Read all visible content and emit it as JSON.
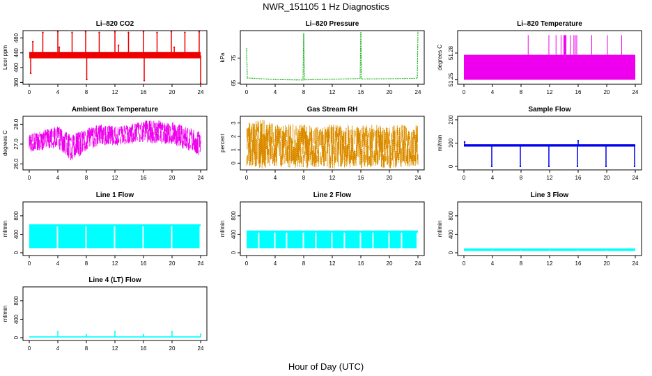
{
  "title": "NWR_151105  1 Hz Diagnostics",
  "xlabel": "Hour of Day (UTC)",
  "chart_data": [
    {
      "type": "line",
      "title": "Li–820 CO2",
      "ylabel": "Licor ppm",
      "color": "#ee0000",
      "xlim": [
        0,
        24
      ],
      "ylim": [
        355,
        500
      ],
      "xticks": [
        0,
        4,
        8,
        12,
        16,
        20,
        24
      ],
      "yticks": [
        360,
        400,
        440,
        480
      ],
      "style": "band",
      "band": [
        {
          "x0": 0,
          "x1": 24,
          "y0": 425,
          "y1": 442
        }
      ],
      "series": [
        {
          "baseline": 433,
          "spikes": [
            {
              "x": 0.2,
              "y": 385
            },
            {
              "x": 0.5,
              "y": 470
            },
            {
              "x": 1.9,
              "y": 495
            },
            {
              "x": 4.0,
              "y": 497
            },
            {
              "x": 4.2,
              "y": 455
            },
            {
              "x": 6.0,
              "y": 495
            },
            {
              "x": 7.9,
              "y": 497
            },
            {
              "x": 8.05,
              "y": 368
            },
            {
              "x": 9.8,
              "y": 495
            },
            {
              "x": 12.0,
              "y": 497
            },
            {
              "x": 12.5,
              "y": 460
            },
            {
              "x": 13.9,
              "y": 495
            },
            {
              "x": 16.0,
              "y": 497
            },
            {
              "x": 16.1,
              "y": 365
            },
            {
              "x": 17.9,
              "y": 495
            },
            {
              "x": 19.9,
              "y": 497
            },
            {
              "x": 20.3,
              "y": 455
            },
            {
              "x": 21.8,
              "y": 495
            },
            {
              "x": 23.8,
              "y": 497
            },
            {
              "x": 24.0,
              "y": 358
            }
          ]
        }
      ]
    },
    {
      "type": "line",
      "title": "Li–820 Pressure",
      "ylabel": "kPa",
      "color": "#00aa00",
      "xlim": [
        0,
        24
      ],
      "ylim": [
        64.5,
        86
      ],
      "xticks": [
        0,
        4,
        8,
        12,
        16,
        20,
        24
      ],
      "yticks": [
        65,
        75
      ],
      "style": "dotted",
      "series": [
        {
          "points": [
            {
              "x": 0,
              "y": 79
            },
            {
              "x": 0.1,
              "y": 67
            },
            {
              "x": 4,
              "y": 66.4
            },
            {
              "x": 7.9,
              "y": 66.2
            },
            {
              "x": 8.0,
              "y": 85
            },
            {
              "x": 8.1,
              "y": 66.3
            },
            {
              "x": 12,
              "y": 66.5
            },
            {
              "x": 15.9,
              "y": 66.8
            },
            {
              "x": 16.0,
              "y": 85.5
            },
            {
              "x": 16.1,
              "y": 66.6
            },
            {
              "x": 20,
              "y": 66.7
            },
            {
              "x": 23.9,
              "y": 66.9
            },
            {
              "x": 24.0,
              "y": 85.5
            }
          ]
        }
      ]
    },
    {
      "type": "line",
      "title": "Li–820 Temperature",
      "ylabel": "degrees C",
      "color": "#ee00ee",
      "xlim": [
        0,
        24
      ],
      "ylim": [
        51.245,
        51.305
      ],
      "xticks": [
        0,
        4,
        8,
        12,
        16,
        20,
        24
      ],
      "yticks": [
        51.25,
        51.28
      ],
      "style": "band",
      "band": [
        {
          "x0": 0,
          "x1": 24,
          "y0": 51.25,
          "y1": 51.278
        }
      ],
      "series": [
        {
          "spikes_x": [
            9.0,
            11.9,
            12.9,
            13.6,
            14.0,
            14.1,
            14.2,
            14.3,
            14.9,
            15.4,
            15.6,
            15.8,
            17.9,
            20.1,
            22.1
          ],
          "spike_top": 51.3
        }
      ]
    },
    {
      "type": "line",
      "title": "Ambient Box Temperature",
      "ylabel": "degrees C",
      "color": "#ee00ee",
      "xlim": [
        0,
        24
      ],
      "ylim": [
        25.7,
        28.4
      ],
      "xticks": [
        0,
        4,
        8,
        12,
        16,
        20,
        24
      ],
      "yticks": [
        26.0,
        27.0,
        28.0
      ],
      "style": "noise",
      "series": [
        {
          "x": [
            0,
            2,
            4,
            6,
            8,
            10,
            12,
            14,
            16,
            18,
            20,
            22,
            24
          ],
          "low": [
            26.6,
            26.7,
            26.8,
            26.1,
            26.6,
            26.9,
            26.9,
            27.0,
            27.1,
            27.0,
            27.0,
            26.7,
            26.4
          ],
          "high": [
            27.5,
            27.7,
            27.9,
            27.5,
            27.8,
            28.0,
            27.9,
            28.0,
            28.2,
            28.2,
            28.1,
            27.9,
            27.6
          ]
        }
      ]
    },
    {
      "type": "scatter",
      "title": "Gas Stream RH",
      "ylabel": "percent",
      "color": "#e0a000",
      "xlim": [
        0,
        24
      ],
      "ylim": [
        -0.5,
        3.5
      ],
      "xticks": [
        0,
        4,
        8,
        12,
        16,
        20,
        24
      ],
      "yticks": [
        0,
        1,
        2,
        3
      ],
      "style": "noise",
      "series": [
        {
          "x": [
            0,
            2,
            4,
            6,
            8,
            10,
            12,
            14,
            16,
            18,
            20,
            22,
            24
          ],
          "low": [
            -0.3,
            -0.4,
            -0.3,
            -0.4,
            -0.4,
            -0.3,
            -0.4,
            -0.3,
            -0.4,
            -0.3,
            -0.4,
            -0.3,
            -0.2
          ],
          "high": [
            3.0,
            3.3,
            2.9,
            2.9,
            2.9,
            2.8,
            2.9,
            2.9,
            2.8,
            2.9,
            2.8,
            2.9,
            2.9
          ]
        }
      ]
    },
    {
      "type": "line",
      "title": "Sample Flow",
      "ylabel": "ml/min",
      "color": "#0000ee",
      "xlim": [
        0,
        24
      ],
      "ylim": [
        -15,
        215
      ],
      "xticks": [
        0,
        4,
        8,
        12,
        16,
        20,
        24
      ],
      "yticks": [
        0,
        100,
        200
      ],
      "style": "band",
      "band": [
        {
          "x0": 0,
          "x1": 24,
          "y0": 85,
          "y1": 95
        }
      ],
      "series": [
        {
          "spikes": [
            {
              "x": 0.1,
              "y": 105
            },
            {
              "x": 3.9,
              "y": 0
            },
            {
              "x": 7.9,
              "y": 0
            },
            {
              "x": 11.9,
              "y": 0
            },
            {
              "x": 15.9,
              "y": 0
            },
            {
              "x": 16.0,
              "y": 110
            },
            {
              "x": 19.9,
              "y": 0
            },
            {
              "x": 23.9,
              "y": 0
            }
          ]
        }
      ]
    },
    {
      "type": "area",
      "title": "Line 1 Flow",
      "ylabel": "ml/min",
      "color": "#00ffff",
      "xlim": [
        0,
        24
      ],
      "ylim": [
        -60,
        1100
      ],
      "xticks": [
        0,
        4,
        8,
        12,
        16,
        20,
        24
      ],
      "yticks": [
        0,
        400,
        800
      ],
      "style": "band",
      "band": [
        {
          "x0": 0,
          "x1": 24,
          "y0": 100,
          "y1": 615
        }
      ],
      "series": [
        {
          "gaps_x": [
            3.95,
            7.95,
            11.95,
            15.95,
            19.95,
            23.95
          ]
        }
      ]
    },
    {
      "type": "area",
      "title": "Line 2 Flow",
      "ylabel": "ml/min",
      "color": "#00ffff",
      "xlim": [
        0,
        24
      ],
      "ylim": [
        -60,
        1100
      ],
      "xticks": [
        0,
        4,
        8,
        12,
        16,
        20,
        24
      ],
      "yticks": [
        0,
        400,
        800
      ],
      "style": "band",
      "band": [
        {
          "x0": 0,
          "x1": 24,
          "y0": 100,
          "y1": 480
        }
      ],
      "series": [
        {
          "gaps_x": [
            1.7,
            3.95,
            5.6,
            7.95,
            9.7,
            11.95,
            13.7,
            15.95,
            17.7,
            19.95,
            21.7,
            23.9
          ]
        }
      ]
    },
    {
      "type": "area",
      "title": "Line 3 Flow",
      "ylabel": "ml/min",
      "color": "#00ffff",
      "xlim": [
        0,
        24
      ],
      "ylim": [
        -60,
        1100
      ],
      "xticks": [
        0,
        4,
        8,
        12,
        16,
        20,
        24
      ],
      "yticks": [
        0,
        400,
        800
      ],
      "style": "band",
      "band": [
        {
          "x0": 0,
          "x1": 24,
          "y0": 40,
          "y1": 95
        }
      ],
      "series": [
        {
          "gaps_x": [
            3.95,
            7.95,
            11.95,
            15.95,
            19.95
          ]
        }
      ]
    },
    {
      "type": "line",
      "title": "Line 4 (LT) Flow",
      "ylabel": "ml/min",
      "color": "#00ffff",
      "xlim": [
        0,
        24
      ],
      "ylim": [
        -60,
        1100
      ],
      "xticks": [
        0,
        4,
        8,
        12,
        16,
        20,
        24
      ],
      "yticks": [
        0,
        400,
        800
      ],
      "style": "band",
      "band": [
        {
          "x0": 0,
          "x1": 24,
          "y0": 5,
          "y1": 30
        }
      ],
      "series": [
        {
          "spikes": [
            {
              "x": 4.0,
              "y": 130
            },
            {
              "x": 8.0,
              "y": 60
            },
            {
              "x": 12.0,
              "y": 130
            },
            {
              "x": 16.0,
              "y": 60
            },
            {
              "x": 20.0,
              "y": 130
            },
            {
              "x": 24.0,
              "y": 70
            }
          ]
        }
      ]
    }
  ]
}
